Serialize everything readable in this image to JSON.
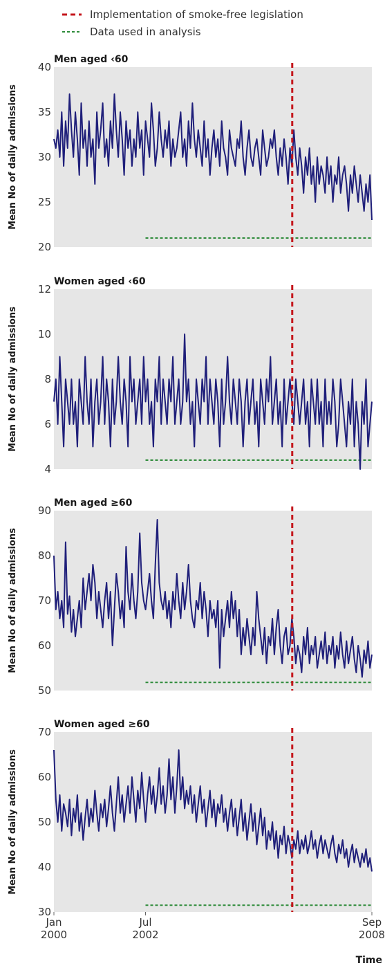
{
  "legend": {
    "intervention_label": "Implementation of smoke-free legislation",
    "analysis_label": "Data used in analysis"
  },
  "colors": {
    "series": "#1f1f7a",
    "intervention": "#c4161c",
    "analysis": "#2e8b3a",
    "panel_bg": "#e6e6e6"
  },
  "x_axis": {
    "title": "Time",
    "ticks": [
      {
        "date": "2000-01-01",
        "label_top": "Jan",
        "label_bottom": "2000"
      },
      {
        "date": "2002-07-01",
        "label_top": "Jul",
        "label_bottom": "2002"
      },
      {
        "date": "2008-09-01",
        "label_top": "Sep",
        "label_bottom": "2008"
      }
    ]
  },
  "chart_data": [
    {
      "type": "line",
      "title": "Men aged ‹60",
      "ylabel": "Mean No of daily admissions",
      "xlim": [
        "2000-01-01",
        "2008-09-01"
      ],
      "ylim": [
        20,
        40
      ],
      "yticks": [
        20,
        25,
        30,
        35,
        40
      ],
      "intervention_date": "2006-07-01",
      "analysis_start": "2002-07-01",
      "analysis_level": 21,
      "series": [
        {
          "x_start": "2000-01-01",
          "x_end": "2008-09-01",
          "values": [
            32,
            31,
            33,
            30,
            35,
            29,
            34,
            31,
            37,
            33,
            30,
            35,
            32,
            28,
            36,
            31,
            33,
            29,
            34,
            30,
            32,
            27,
            35,
            31,
            33,
            36,
            30,
            32,
            29,
            34,
            31,
            37,
            33,
            30,
            35,
            32,
            28,
            34,
            31,
            33,
            29,
            32,
            30,
            35,
            31,
            33,
            28,
            34,
            32,
            30,
            36,
            33,
            29,
            31,
            35,
            32,
            30,
            33,
            31,
            34,
            29,
            32,
            30,
            31,
            33,
            35,
            30,
            32,
            29,
            34,
            31,
            36,
            32,
            30,
            33,
            31,
            29,
            34,
            30,
            32,
            28,
            31,
            33,
            30,
            32,
            29,
            34,
            31,
            30,
            28,
            33,
            31,
            30,
            29,
            32,
            31,
            34,
            30,
            28,
            31,
            33,
            30,
            29,
            31,
            32,
            30,
            28,
            33,
            31,
            29,
            30,
            32,
            31,
            33,
            30,
            28,
            31,
            29,
            32,
            30,
            27,
            31,
            29,
            33,
            30,
            28,
            31,
            29,
            26,
            30,
            28,
            31,
            27,
            29,
            25,
            30,
            27,
            29,
            28,
            26,
            30,
            27,
            29,
            25,
            28,
            27,
            30,
            26,
            28,
            29,
            27,
            24,
            28,
            26,
            29,
            27,
            25,
            28,
            26,
            24,
            27,
            25,
            28,
            23
          ]
        }
      ]
    },
    {
      "type": "line",
      "title": "Women aged ‹60",
      "ylabel": "Mean No of daily admissions",
      "xlim": [
        "2000-01-01",
        "2008-09-01"
      ],
      "ylim": [
        4,
        12
      ],
      "yticks": [
        4,
        6,
        8,
        10,
        12
      ],
      "intervention_date": "2006-07-01",
      "analysis_start": "2002-07-01",
      "analysis_level": 4.4,
      "series": [
        {
          "x_start": "2000-01-01",
          "x_end": "2008-09-01",
          "values": [
            7,
            8,
            6,
            9,
            7,
            5,
            8,
            7,
            6,
            8,
            6,
            7,
            5,
            8,
            7,
            6,
            9,
            7,
            6,
            8,
            5,
            7,
            8,
            6,
            7,
            9,
            6,
            8,
            7,
            5,
            8,
            6,
            7,
            9,
            7,
            6,
            8,
            7,
            5,
            9,
            7,
            8,
            6,
            7,
            8,
            6,
            9,
            7,
            8,
            6,
            7,
            5,
            8,
            7,
            9,
            6,
            8,
            7,
            6,
            8,
            7,
            9,
            6,
            7,
            8,
            6,
            7,
            10,
            7,
            8,
            6,
            7,
            5,
            8,
            7,
            6,
            8,
            7,
            9,
            6,
            8,
            7,
            6,
            8,
            7,
            5,
            8,
            6,
            7,
            9,
            7,
            6,
            8,
            7,
            6,
            8,
            7,
            5,
            7,
            8,
            6,
            7,
            8,
            6,
            7,
            5,
            8,
            7,
            6,
            8,
            7,
            9,
            6,
            7,
            8,
            6,
            7,
            5,
            8,
            6,
            7,
            8,
            7,
            6,
            8,
            7,
            6,
            7,
            8,
            6,
            7,
            5,
            8,
            7,
            6,
            8,
            6,
            7,
            5,
            8,
            6,
            7,
            6,
            8,
            7,
            5,
            6,
            8,
            7,
            6,
            5,
            7,
            6,
            8,
            5,
            7,
            6,
            4,
            7,
            6,
            8,
            5,
            6,
            7
          ]
        }
      ]
    },
    {
      "type": "line",
      "title": "Men aged ≥60",
      "ylabel": "Mean No of daily admissions",
      "xlim": [
        "2000-01-01",
        "2008-09-01"
      ],
      "ylim": [
        50,
        90
      ],
      "yticks": [
        50,
        60,
        70,
        80,
        90
      ],
      "intervention_date": "2006-07-01",
      "analysis_start": "2002-07-01",
      "analysis_level": 51.8,
      "series": [
        {
          "x_start": "2000-01-01",
          "x_end": "2008-09-01",
          "values": [
            80,
            68,
            72,
            66,
            70,
            64,
            83,
            67,
            71,
            63,
            68,
            62,
            66,
            70,
            64,
            75,
            68,
            72,
            76,
            70,
            78,
            74,
            66,
            72,
            68,
            64,
            70,
            74,
            66,
            72,
            60,
            68,
            76,
            72,
            66,
            70,
            64,
            82,
            72,
            68,
            76,
            70,
            66,
            72,
            85,
            74,
            70,
            68,
            72,
            76,
            70,
            66,
            78,
            88,
            74,
            70,
            68,
            72,
            66,
            70,
            64,
            72,
            68,
            76,
            70,
            66,
            74,
            68,
            72,
            78,
            70,
            66,
            64,
            70,
            68,
            74,
            66,
            72,
            68,
            62,
            70,
            66,
            68,
            64,
            70,
            55,
            68,
            62,
            66,
            70,
            64,
            72,
            66,
            70,
            62,
            68,
            58,
            64,
            60,
            66,
            62,
            58,
            64,
            60,
            72,
            66,
            62,
            58,
            64,
            56,
            62,
            60,
            66,
            58,
            64,
            68,
            60,
            56,
            62,
            64,
            58,
            60,
            66,
            62,
            56,
            60,
            58,
            54,
            62,
            58,
            64,
            56,
            60,
            58,
            62,
            55,
            58,
            61,
            57,
            63,
            56,
            60,
            58,
            62,
            55,
            60,
            57,
            63,
            58,
            55,
            61,
            56,
            59,
            62,
            57,
            54,
            60,
            57,
            53,
            59,
            56,
            61,
            55,
            58
          ]
        }
      ]
    },
    {
      "type": "line",
      "title": "Women aged ≥60",
      "ylabel": "Mean No of daily admissions",
      "xlim": [
        "2000-01-01",
        "2008-09-01"
      ],
      "ylim": [
        30,
        70
      ],
      "yticks": [
        30,
        40,
        50,
        60,
        70
      ],
      "intervention_date": "2006-07-01",
      "analysis_start": "2002-07-01",
      "analysis_level": 31.5,
      "series": [
        {
          "x_start": "2000-01-01",
          "x_end": "2008-09-01",
          "values": [
            66,
            55,
            50,
            56,
            48,
            54,
            52,
            49,
            55,
            47,
            53,
            50,
            56,
            48,
            52,
            46,
            51,
            55,
            49,
            53,
            50,
            57,
            52,
            48,
            54,
            51,
            55,
            49,
            53,
            58,
            52,
            48,
            54,
            60,
            52,
            56,
            50,
            54,
            58,
            52,
            60,
            55,
            50,
            57,
            53,
            61,
            55,
            50,
            56,
            60,
            54,
            58,
            52,
            56,
            62,
            54,
            58,
            52,
            56,
            64,
            55,
            60,
            52,
            58,
            66,
            55,
            60,
            53,
            57,
            54,
            58,
            52,
            56,
            50,
            54,
            58,
            52,
            55,
            49,
            53,
            57,
            51,
            55,
            49,
            54,
            52,
            56,
            50,
            53,
            48,
            52,
            55,
            49,
            53,
            47,
            51,
            55,
            48,
            52,
            46,
            50,
            54,
            48,
            52,
            45,
            49,
            53,
            47,
            51,
            44,
            48,
            46,
            50,
            44,
            48,
            42,
            47,
            45,
            49,
            43,
            47,
            45,
            42,
            46,
            44,
            48,
            43,
            46,
            44,
            47,
            43,
            45,
            48,
            44,
            46,
            42,
            45,
            47,
            43,
            46,
            44,
            42,
            45,
            47,
            43,
            41,
            45,
            43,
            46,
            42,
            44,
            40,
            43,
            45,
            41,
            44,
            42,
            40,
            43,
            41,
            44,
            40,
            42,
            39
          ]
        }
      ]
    }
  ]
}
